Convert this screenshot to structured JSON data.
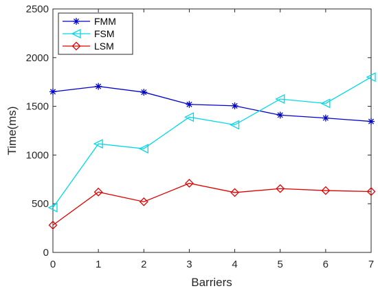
{
  "chart_data": {
    "type": "line",
    "xlabel": "Barriers",
    "ylabel": "Time(ms)",
    "xlim": [
      0,
      7
    ],
    "ylim": [
      0,
      2500
    ],
    "xticks": [
      "0",
      "1",
      "2",
      "3",
      "4",
      "5",
      "6",
      "7"
    ],
    "yticks": [
      "0",
      "500",
      "1000",
      "1500",
      "2000",
      "2500"
    ],
    "grid": false,
    "legend_position": "top-left",
    "x": [
      0,
      1,
      2,
      3,
      4,
      5,
      6,
      7
    ],
    "series": [
      {
        "name": "FMM",
        "color": "#0000cc",
        "marker": "asterisk",
        "values": [
          1650,
          1705,
          1645,
          1520,
          1505,
          1410,
          1380,
          1345
        ]
      },
      {
        "name": "FSM",
        "color": "#00d8e8",
        "marker": "triangle-left",
        "values": [
          460,
          1115,
          1065,
          1390,
          1310,
          1575,
          1530,
          1800
        ]
      },
      {
        "name": "LSM",
        "color": "#e00000",
        "marker": "diamond",
        "values": [
          280,
          620,
          520,
          710,
          615,
          655,
          635,
          625
        ]
      }
    ]
  }
}
